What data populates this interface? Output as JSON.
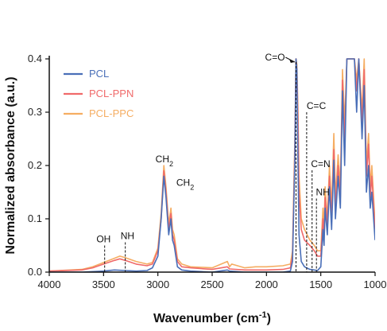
{
  "chart_data": {
    "type": "line",
    "xlabel": "Wavenumber (cm",
    "xlabel_sup": "-1",
    "xlabel_close": ")",
    "ylabel": "Normalized absorbance (a.u.)",
    "xlim": [
      4000,
      1000
    ],
    "ylim": [
      0,
      0.4
    ],
    "xticks": [
      4000,
      3500,
      3000,
      2500,
      2000,
      1500,
      1000
    ],
    "yticks": [
      0.0,
      0.1,
      0.2,
      0.3,
      0.4
    ],
    "ytick_labels": [
      "0.0",
      "0.1",
      "0.2",
      "0.3",
      "0.4"
    ],
    "legend_position": "top-left",
    "grid": false,
    "series": [
      {
        "name": "PCL",
        "color": "#4a6fb8",
        "x": [
          4000,
          3700,
          3500,
          3400,
          3300,
          3200,
          3100,
          3050,
          3000,
          2970,
          2945,
          2925,
          2900,
          2880,
          2865,
          2850,
          2820,
          2780,
          2700,
          2500,
          2360,
          2340,
          2200,
          2000,
          1850,
          1780,
          1760,
          1740,
          1728,
          1720,
          1710,
          1700,
          1680,
          1650,
          1600,
          1560,
          1530,
          1500,
          1480,
          1470,
          1460,
          1440,
          1420,
          1400,
          1380,
          1365,
          1340,
          1320,
          1300,
          1280,
          1260,
          1240,
          1220,
          1190,
          1170,
          1150,
          1120,
          1100,
          1080,
          1060,
          1045,
          1030,
          1000
        ],
        "y": [
          0.0,
          0.0,
          0.002,
          0.004,
          0.003,
          0.002,
          0.003,
          0.008,
          0.03,
          0.1,
          0.18,
          0.14,
          0.07,
          0.1,
          0.06,
          0.05,
          0.01,
          0.004,
          0.002,
          0.0,
          0.004,
          0.002,
          0.0,
          0.0,
          0.0,
          0.002,
          0.02,
          0.2,
          0.4,
          0.38,
          0.2,
          0.07,
          0.02,
          0.01,
          0.005,
          0.004,
          0.003,
          0.01,
          0.08,
          0.05,
          0.12,
          0.07,
          0.16,
          0.08,
          0.21,
          0.1,
          0.18,
          0.12,
          0.34,
          0.2,
          0.4,
          0.4,
          0.4,
          0.4,
          0.3,
          0.4,
          0.25,
          0.35,
          0.15,
          0.2,
          0.12,
          0.15,
          0.06
        ]
      },
      {
        "name": "PCL-PPN",
        "color": "#f06a6a",
        "x": [
          4000,
          3700,
          3600,
          3500,
          3400,
          3350,
          3300,
          3200,
          3100,
          3050,
          3000,
          2970,
          2945,
          2925,
          2900,
          2880,
          2865,
          2850,
          2820,
          2780,
          2700,
          2500,
          2360,
          2340,
          2200,
          2000,
          1850,
          1780,
          1760,
          1740,
          1728,
          1720,
          1710,
          1700,
          1680,
          1650,
          1600,
          1560,
          1530,
          1500,
          1480,
          1470,
          1460,
          1440,
          1420,
          1400,
          1380,
          1365,
          1340,
          1320,
          1300,
          1280,
          1260,
          1240,
          1220,
          1190,
          1170,
          1150,
          1120,
          1100,
          1080,
          1060,
          1045,
          1030,
          1000
        ],
        "y": [
          0.002,
          0.004,
          0.008,
          0.015,
          0.022,
          0.025,
          0.022,
          0.015,
          0.012,
          0.015,
          0.04,
          0.1,
          0.19,
          0.15,
          0.08,
          0.11,
          0.07,
          0.06,
          0.02,
          0.01,
          0.008,
          0.005,
          0.01,
          0.006,
          0.004,
          0.004,
          0.005,
          0.008,
          0.03,
          0.22,
          0.4,
          0.38,
          0.28,
          0.15,
          0.08,
          0.06,
          0.05,
          0.04,
          0.03,
          0.03,
          0.1,
          0.07,
          0.14,
          0.09,
          0.18,
          0.1,
          0.23,
          0.12,
          0.2,
          0.14,
          0.36,
          0.24,
          0.4,
          0.4,
          0.4,
          0.4,
          0.34,
          0.4,
          0.28,
          0.38,
          0.18,
          0.24,
          0.14,
          0.18,
          0.08
        ]
      },
      {
        "name": "PCL-PPC",
        "color": "#f5ad62",
        "x": [
          4000,
          3700,
          3600,
          3500,
          3400,
          3350,
          3300,
          3200,
          3100,
          3050,
          3000,
          2970,
          2945,
          2925,
          2900,
          2880,
          2865,
          2850,
          2820,
          2780,
          2700,
          2500,
          2360,
          2340,
          2320,
          2200,
          2100,
          2000,
          1850,
          1780,
          1760,
          1740,
          1728,
          1720,
          1710,
          1700,
          1680,
          1650,
          1600,
          1560,
          1530,
          1500,
          1480,
          1470,
          1460,
          1440,
          1420,
          1400,
          1380,
          1365,
          1340,
          1320,
          1300,
          1280,
          1260,
          1240,
          1220,
          1190,
          1170,
          1150,
          1120,
          1100,
          1080,
          1060,
          1045,
          1030,
          1000
        ],
        "y": [
          0.002,
          0.005,
          0.01,
          0.018,
          0.026,
          0.03,
          0.027,
          0.02,
          0.015,
          0.018,
          0.045,
          0.11,
          0.2,
          0.16,
          0.09,
          0.12,
          0.08,
          0.07,
          0.025,
          0.015,
          0.01,
          0.008,
          0.02,
          0.01,
          0.015,
          0.008,
          0.01,
          0.01,
          0.012,
          0.015,
          0.04,
          0.24,
          0.4,
          0.39,
          0.3,
          0.18,
          0.1,
          0.08,
          0.06,
          0.05,
          0.04,
          0.04,
          0.12,
          0.08,
          0.16,
          0.1,
          0.2,
          0.12,
          0.26,
          0.14,
          0.22,
          0.16,
          0.38,
          0.28,
          0.4,
          0.4,
          0.4,
          0.4,
          0.36,
          0.4,
          0.3,
          0.4,
          0.2,
          0.26,
          0.16,
          0.2,
          0.09
        ]
      }
    ],
    "annotations": [
      {
        "text": "C=O",
        "x": 1728,
        "y": 0.4,
        "style": "arrow"
      },
      {
        "text": "C=C",
        "x": 1630,
        "y": 0.3,
        "style": "dashed"
      },
      {
        "text": "C=N",
        "x": 1580,
        "y": 0.2,
        "style": "dashed"
      },
      {
        "text": "NH",
        "x": 1540,
        "y": 0.15,
        "style": "dashed"
      },
      {
        "text": "CH2",
        "x": 2920,
        "y": 0.2,
        "style": "label"
      },
      {
        "text": "CH2",
        "x": 2855,
        "y": 0.12,
        "style": "label"
      },
      {
        "text": "OH",
        "x": 3490,
        "y": 0.05,
        "style": "dashed"
      },
      {
        "text": "NH",
        "x": 3300,
        "y": 0.05,
        "style": "dashed"
      }
    ]
  }
}
